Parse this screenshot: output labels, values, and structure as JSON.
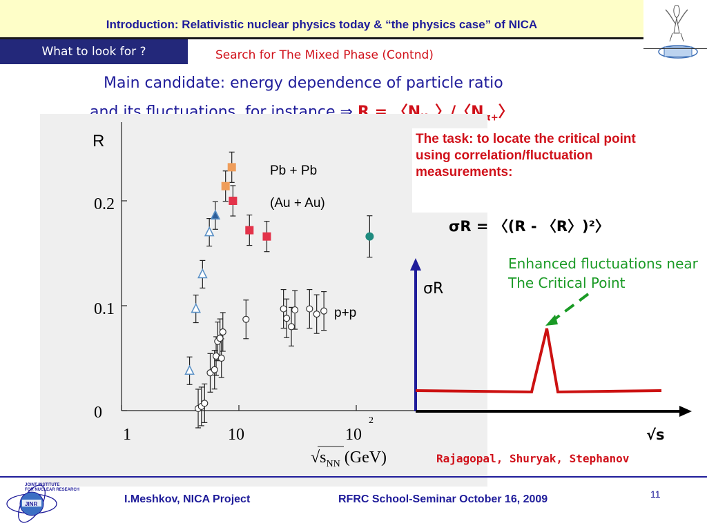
{
  "header": {
    "title": "Introduction: Relativistic nuclear physics today & “the physics case” of NICA"
  },
  "tab": {
    "label": "What to look for ?"
  },
  "subtitle": "Search for The Mixed Phase (Contnd)",
  "main": {
    "line1": "Main candidate: energy dependence of particle ratio",
    "line2_prefix": "and its fluctuations, for instance ⇒",
    "formula": {
      "r": "R =",
      "left": "〈N",
      "k_sub": "K+",
      "mid": "〉/〈N",
      "pi_sub": "π+",
      "right": "〉"
    }
  },
  "plot": {
    "r_label": "R",
    "pbpb_label": "Pb + Pb",
    "auau_label": "(Au + Au)",
    "pp_label": "p+p",
    "x_axis_label": "√s",
    "x_axis_sub": "NN",
    "x_axis_unit": "(GeV)",
    "y_ticks": [
      "0",
      "0.1",
      "0.2"
    ],
    "x_ticks": [
      "1",
      "10",
      "10"
    ],
    "x_tick_exp": "2"
  },
  "chart_data": {
    "type": "scatter",
    "xscale": "log",
    "xlim": [
      1,
      200
    ],
    "ylim": [
      0,
      0.27
    ],
    "xlabel": "√s_NN (GeV)",
    "ylabel": "R",
    "series": [
      {
        "name": "Pb + Pb",
        "marker": "square",
        "color": "#ef9d5a",
        "points": [
          [
            7.7,
            0.214
          ],
          [
            8.7,
            0.232
          ]
        ]
      },
      {
        "name": "Pb + Pb",
        "marker": "square",
        "color": "#e3334a",
        "points": [
          [
            8.9,
            0.2
          ],
          [
            12.3,
            0.172
          ],
          [
            17.3,
            0.166
          ]
        ]
      },
      {
        "name": "(Au + Au)",
        "marker": "triangle",
        "color": "#5b91c6",
        "points": [
          [
            3.8,
            0.038
          ],
          [
            4.3,
            0.097
          ],
          [
            4.9,
            0.13
          ],
          [
            5.6,
            0.17
          ],
          [
            6.3,
            0.186
          ]
        ]
      },
      {
        "marker": "circle-filled",
        "color": "#1f8b7f",
        "points": [
          [
            130,
            0.166
          ]
        ]
      },
      {
        "name": "p+p",
        "marker": "circle-open",
        "color": "#333333",
        "points": [
          [
            4.5,
            0.002
          ],
          [
            4.8,
            0.004
          ],
          [
            5.1,
            0.007
          ],
          [
            5.7,
            0.036
          ],
          [
            6.2,
            0.039
          ],
          [
            6.4,
            0.052
          ],
          [
            6.6,
            0.066
          ],
          [
            6.9,
            0.069
          ],
          [
            7.1,
            0.05
          ],
          [
            7.3,
            0.075
          ],
          [
            11.5,
            0.087
          ],
          [
            24,
            0.097
          ],
          [
            25.5,
            0.088
          ],
          [
            28,
            0.08
          ],
          [
            30,
            0.096
          ],
          [
            40,
            0.097
          ],
          [
            46,
            0.092
          ],
          [
            53,
            0.095
          ]
        ]
      }
    ]
  },
  "task": {
    "text": "The task: to locate the critical point using correlation/fluctuation measurements:",
    "sigma_formula": "σR = 〈(R - 〈R〉)²〉"
  },
  "sketch": {
    "ylabel": "σR",
    "xlabel": "√s",
    "annotation": "Enhanced fluctuations near The Critical Point"
  },
  "authors": "Rajagopal, Shuryak, Stephanov",
  "footer": {
    "left": "I.Meshkov, NICA Project",
    "right": "RFRC School-Seminar October 16, 2009",
    "page_number": "11"
  },
  "colors": {
    "header_bg": "#fefec8",
    "title_blue": "#1f1c9a",
    "accent_red": "#d0111a",
    "green": "#1a9a25",
    "tab_bg": "#23287a"
  }
}
